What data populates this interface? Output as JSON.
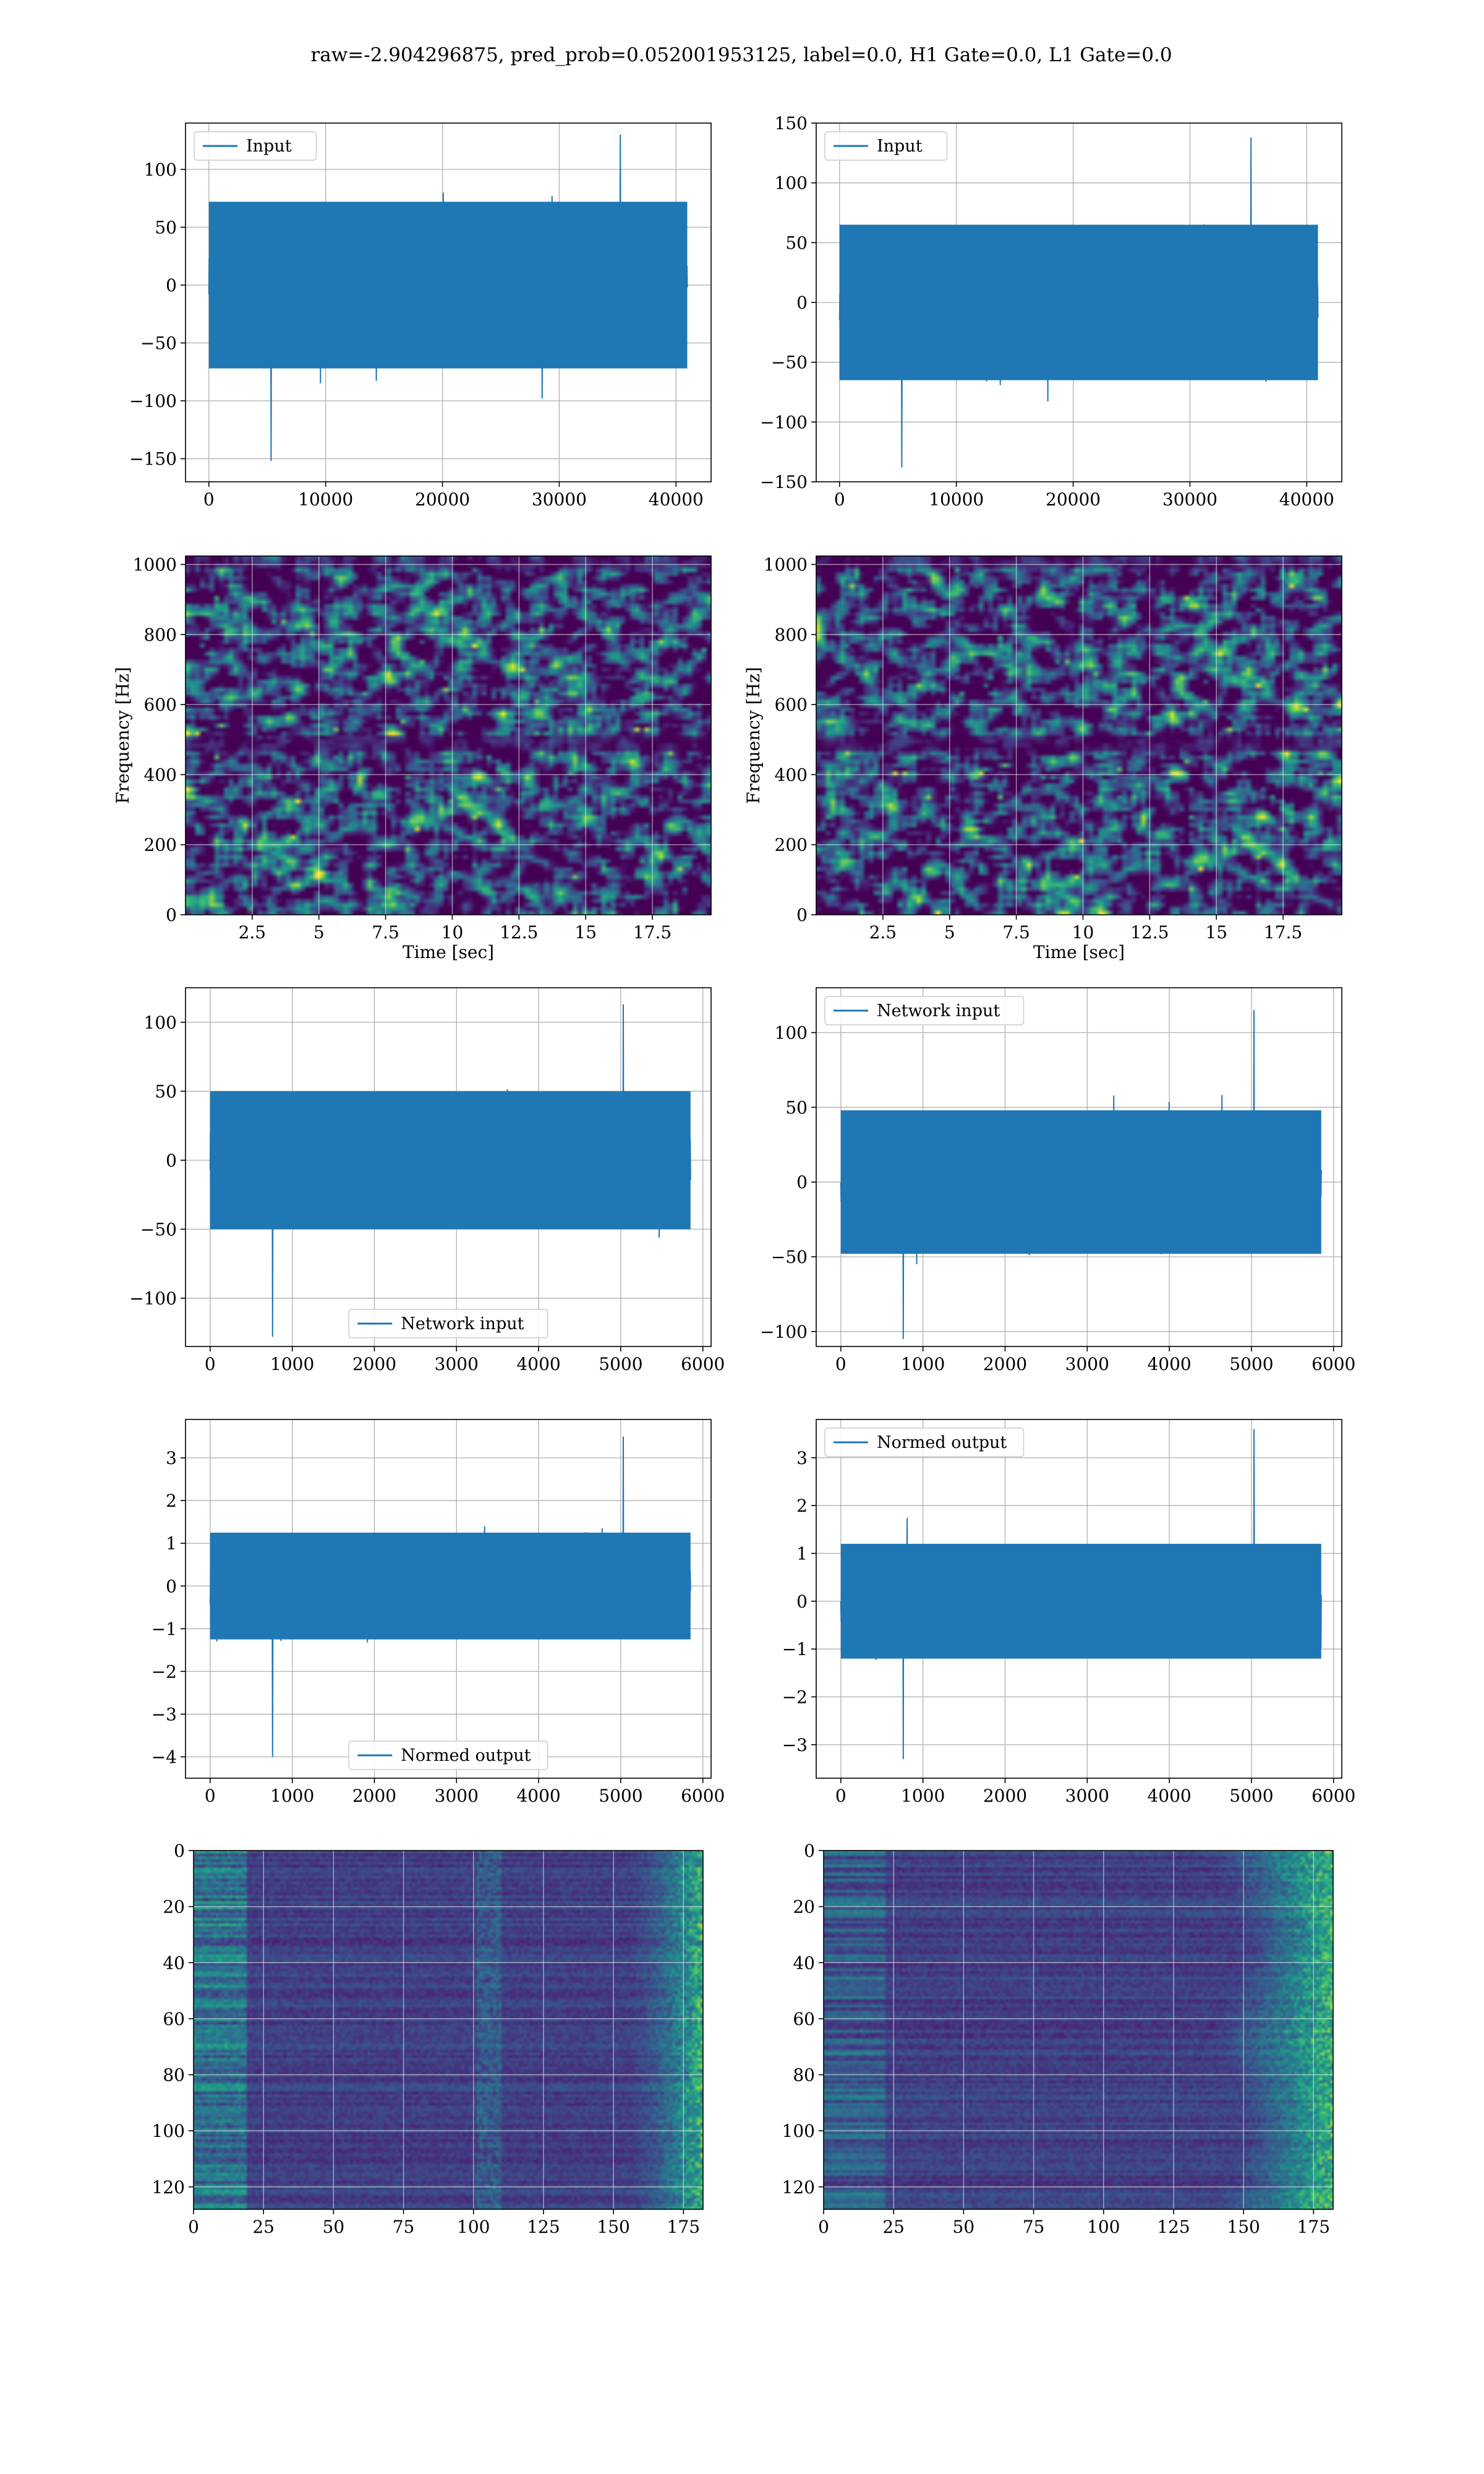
{
  "figure": {
    "title": "raw=-2.904296875, pred_prob=0.052001953125, label=0.0, H1 Gate=0.0, L1 Gate=0.0"
  },
  "colors": {
    "line": "#1f77b4",
    "grid": "#b0b0b0",
    "spine": "#000000",
    "viridis_low": "#440154",
    "viridis_mid": "#21918c",
    "viridis_high": "#fde725"
  },
  "chart_data": [
    {
      "name": "H1 input",
      "type": "line",
      "legend": "Input",
      "legend_loc": "upper left",
      "xlim": [
        -2000,
        43000
      ],
      "ylim": [
        -170,
        140
      ],
      "xticks": [
        0,
        10000,
        20000,
        30000,
        40000
      ],
      "yticks": [
        100,
        50,
        0,
        -50,
        -100,
        -150
      ],
      "x_range": [
        0,
        40960
      ],
      "envelope": [
        -72,
        72
      ],
      "max": 130,
      "min": -152,
      "grid": true
    },
    {
      "name": "L1 input",
      "type": "line",
      "legend": "Input",
      "legend_loc": "upper left",
      "xlim": [
        -2000,
        43000
      ],
      "ylim": [
        -150,
        150
      ],
      "xticks": [
        0,
        10000,
        20000,
        30000,
        40000
      ],
      "yticks": [
        150,
        100,
        50,
        0,
        -50,
        -100,
        -150
      ],
      "x_range": [
        0,
        40960
      ],
      "envelope": [
        -65,
        65
      ],
      "max": 138,
      "min": -138,
      "grid": true
    },
    {
      "name": "H1 spectrogram",
      "type": "heatmap",
      "colormap": "viridis",
      "xlabel": "Time [sec]",
      "ylabel": "Frequency [Hz]",
      "xlim": [
        0,
        19.7
      ],
      "ylim": [
        0,
        1024
      ],
      "xticks": [
        2.5,
        5.0,
        7.5,
        10.0,
        12.5,
        15.0,
        17.5
      ],
      "yticks": [
        0,
        200,
        400,
        600,
        800,
        1000
      ],
      "grid": true
    },
    {
      "name": "L1 spectrogram",
      "type": "heatmap",
      "colormap": "viridis",
      "xlabel": "Time [sec]",
      "ylabel": "Frequency [Hz]",
      "xlim": [
        0,
        19.7
      ],
      "ylim": [
        0,
        1024
      ],
      "xticks": [
        2.5,
        5.0,
        7.5,
        10.0,
        12.5,
        15.0,
        17.5
      ],
      "yticks": [
        0,
        200,
        400,
        600,
        800,
        1000
      ],
      "grid": true
    },
    {
      "name": "H1 network input",
      "type": "line",
      "legend": "Network input",
      "legend_loc": "lower center",
      "xlim": [
        -300,
        6100
      ],
      "ylim": [
        -135,
        125
      ],
      "xticks": [
        0,
        1000,
        2000,
        3000,
        4000,
        5000,
        6000
      ],
      "yticks": [
        100,
        50,
        0,
        -50,
        -100
      ],
      "x_range": [
        0,
        5850
      ],
      "envelope": [
        -50,
        50
      ],
      "max": 113,
      "min": -128,
      "grid": true
    },
    {
      "name": "L1 network input",
      "type": "line",
      "legend": "Network input",
      "legend_loc": "upper left",
      "xlim": [
        -300,
        6100
      ],
      "ylim": [
        -110,
        130
      ],
      "xticks": [
        0,
        1000,
        2000,
        3000,
        4000,
        5000,
        6000
      ],
      "yticks": [
        100,
        50,
        0,
        -50,
        -100
      ],
      "x_range": [
        0,
        5850
      ],
      "envelope": [
        -48,
        48
      ],
      "max": 115,
      "min": -105,
      "grid": true
    },
    {
      "name": "H1 normed output",
      "type": "line",
      "legend": "Normed output",
      "legend_loc": "lower center",
      "xlim": [
        -300,
        6100
      ],
      "ylim": [
        -4.5,
        3.9
      ],
      "xticks": [
        0,
        1000,
        2000,
        3000,
        4000,
        5000,
        6000
      ],
      "yticks": [
        3,
        2,
        1,
        0,
        -1,
        -2,
        -3,
        -4
      ],
      "x_range": [
        0,
        5850
      ],
      "envelope": [
        -1.25,
        1.25
      ],
      "max": 3.5,
      "min": -4.0,
      "grid": true
    },
    {
      "name": "L1 normed output",
      "type": "line",
      "legend": "Normed output",
      "legend_loc": "upper left",
      "xlim": [
        -300,
        6100
      ],
      "ylim": [
        -3.7,
        3.8
      ],
      "xticks": [
        0,
        1000,
        2000,
        3000,
        4000,
        5000,
        6000
      ],
      "yticks": [
        3,
        2,
        1,
        0,
        -1,
        -2,
        -3
      ],
      "x_range": [
        0,
        5850
      ],
      "envelope": [
        -1.2,
        1.2
      ],
      "max": 3.6,
      "min": -3.3,
      "grid": true
    },
    {
      "name": "H1 feature map",
      "type": "heatmap",
      "colormap": "viridis",
      "xlim": [
        0,
        182
      ],
      "ylim": [
        128,
        0
      ],
      "xticks": [
        0,
        25,
        50,
        75,
        100,
        125,
        150,
        175
      ],
      "yticks": [
        0,
        20,
        40,
        60,
        80,
        100,
        120
      ],
      "grid": true
    },
    {
      "name": "L1 feature map",
      "type": "heatmap",
      "colormap": "viridis",
      "xlim": [
        0,
        182
      ],
      "ylim": [
        128,
        0
      ],
      "xticks": [
        0,
        25,
        50,
        75,
        100,
        125,
        150,
        175
      ],
      "yticks": [
        0,
        20,
        40,
        60,
        80,
        100,
        120
      ],
      "grid": true
    }
  ]
}
